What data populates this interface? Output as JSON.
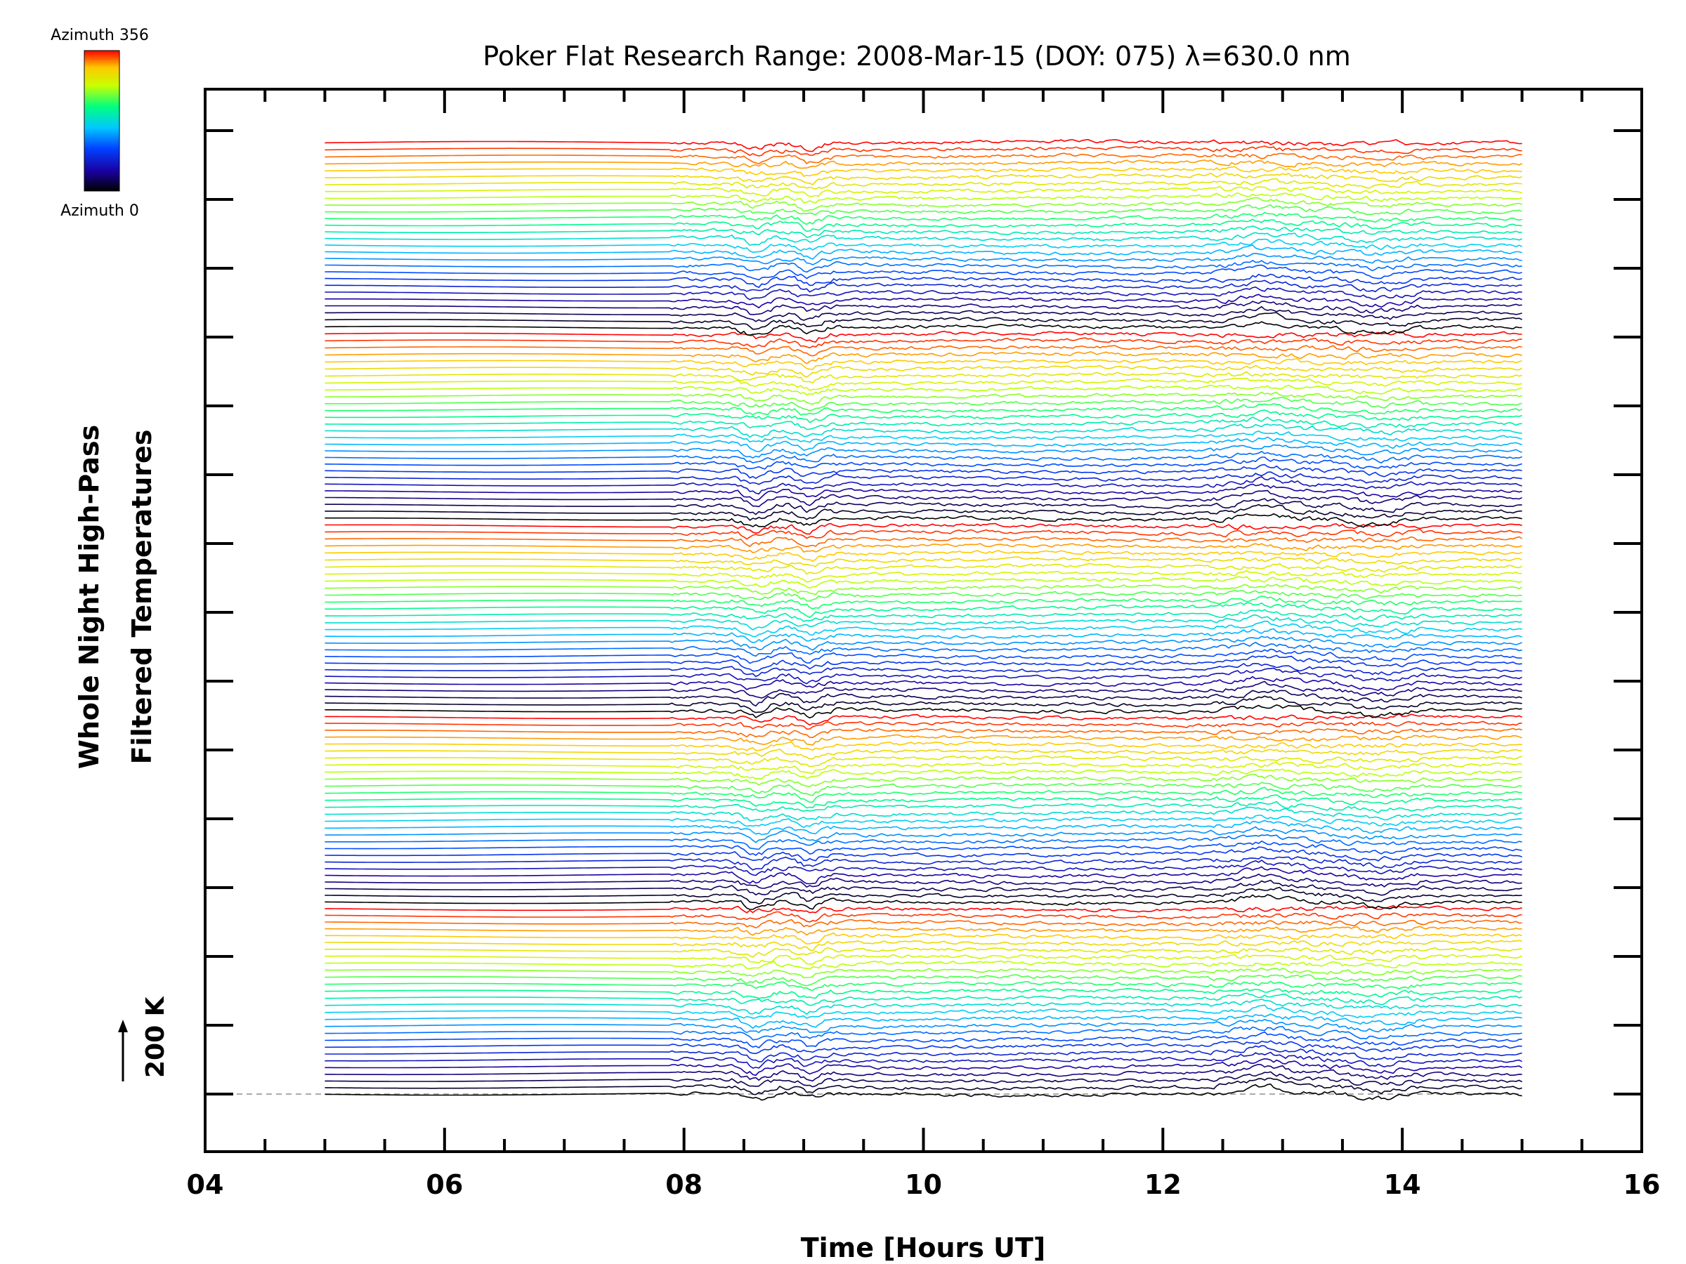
{
  "chart_data": {
    "type": "line",
    "title": "Poker Flat Research Range: 2008-Mar-15 (DOY: 075) λ=630.0 nm",
    "xlabel": "Time [Hours UT]",
    "ylabel_line1": "Whole Night High-Pass",
    "ylabel_line2": "Filtered Temperatures",
    "xlim": [
      4,
      16
    ],
    "x_ticks": [
      "04",
      "06",
      "08",
      "10",
      "12",
      "14",
      "16"
    ],
    "x_range_data": [
      5.0,
      15.0
    ],
    "scale_bar_label": "200 K",
    "colorbar": {
      "top_label": "Azimuth 356",
      "bottom_label": "Azimuth 0",
      "colormap": [
        "#000000",
        "#1a00a0",
        "#0040ff",
        "#00c8ff",
        "#00ff80",
        "#c8ff00",
        "#ffc800",
        "#ff0000"
      ]
    },
    "stack_count": 140,
    "azimuth_cycle": 28,
    "grid": false,
    "baseline_style": "dashed-gray"
  }
}
